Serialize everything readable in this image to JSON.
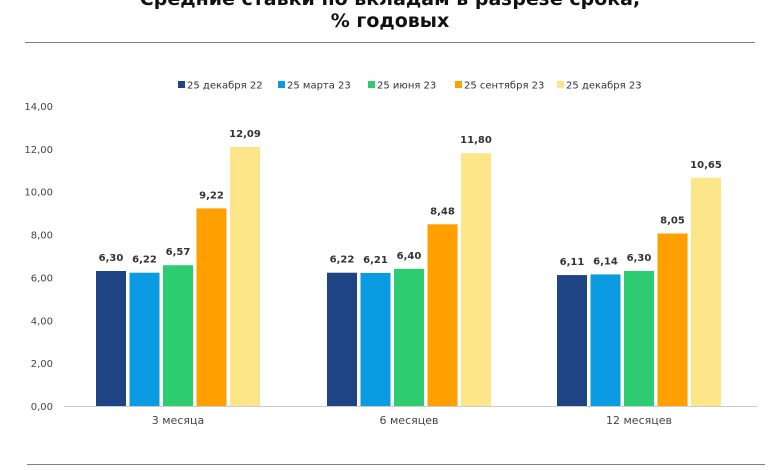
{
  "chart_data": {
    "type": "bar",
    "title_lines": [
      "Средние ставки по вкладам в разрезе срока,",
      "% годовых"
    ],
    "xlabel": "",
    "ylabel": "",
    "ylim": [
      0,
      14
    ],
    "yticks": [
      "0,00",
      "2,00",
      "4,00",
      "6,00",
      "8,00",
      "10,00",
      "12,00",
      "14,00"
    ],
    "grid": false,
    "legend_position": "top-center",
    "categories": [
      "3 месяца",
      "6 месяцев",
      "12 месяцев"
    ],
    "series": [
      {
        "name": "25 декабря 22",
        "color": "#1f4484",
        "values": [
          6.3,
          6.22,
          6.11
        ],
        "labels": [
          "6,30",
          "6,22",
          "6,11"
        ]
      },
      {
        "name": "25 марта 23",
        "color": "#0a9be3",
        "values": [
          6.22,
          6.21,
          6.14
        ],
        "labels": [
          "6,22",
          "6,21",
          "6,14"
        ]
      },
      {
        "name": "25 июня 23",
        "color": "#2ecc71",
        "values": [
          6.57,
          6.4,
          6.3
        ],
        "labels": [
          "6,57",
          "6,40",
          "6,30"
        ]
      },
      {
        "name": "25 сентября 23",
        "color": "#ff9f00",
        "values": [
          9.22,
          8.48,
          8.05
        ],
        "labels": [
          "9,22",
          "8,48",
          "8,05"
        ]
      },
      {
        "name": "25 декабря 23",
        "color": "#fde68a",
        "values": [
          12.09,
          11.8,
          10.65
        ],
        "labels": [
          "12,09",
          "11,80",
          "10,65"
        ]
      }
    ]
  }
}
